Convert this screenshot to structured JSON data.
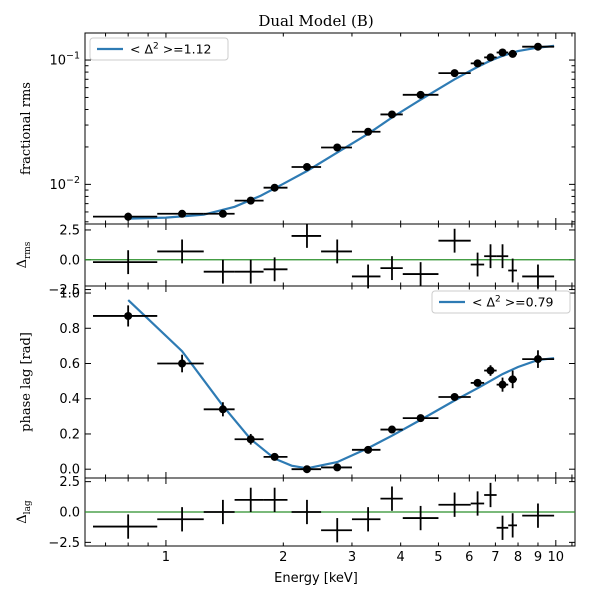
{
  "chart_data": {
    "type": "scatter",
    "title": "Dual Model (B)",
    "xlabel": "Energy [keV]",
    "x_scale": "log",
    "xlim": [
      0.62,
      11.2
    ],
    "x_ticks": [
      {
        "v": 1,
        "label": "1"
      },
      {
        "v": 2,
        "label": "2"
      },
      {
        "v": 3,
        "label": "3"
      },
      {
        "v": 4,
        "label": "4"
      },
      {
        "v": 5,
        "label": "5"
      },
      {
        "v": 6,
        "label": "6"
      },
      {
        "v": 7,
        "label": "7"
      },
      {
        "v": 8,
        "label": "8"
      },
      {
        "v": 9,
        "label": "9"
      },
      {
        "v": 10,
        "label": "10"
      }
    ],
    "energy": [
      0.8,
      1.1,
      1.4,
      1.65,
      1.9,
      2.3,
      2.75,
      3.3,
      3.8,
      4.5,
      5.5,
      6.3,
      6.8,
      7.3,
      7.75,
      9.0
    ],
    "energy_lo": [
      0.65,
      0.95,
      1.25,
      1.5,
      1.78,
      2.1,
      2.5,
      3.0,
      3.55,
      4.05,
      5.0,
      6.05,
      6.55,
      7.05,
      7.55,
      8.2
    ],
    "energy_hi": [
      0.95,
      1.25,
      1.5,
      1.78,
      2.05,
      2.5,
      3.0,
      3.55,
      4.05,
      5.0,
      6.05,
      6.55,
      7.05,
      7.55,
      7.95,
      9.9
    ],
    "panels": [
      {
        "id": "rms",
        "ylabel": "fractional rms",
        "y_scale": "log",
        "ylim": [
          0.0048,
          0.165
        ],
        "y_ticks": [
          {
            "v": 0.01,
            "label_base": "10",
            "label_exp": "−2"
          },
          {
            "v": 0.1,
            "label_base": "10",
            "label_exp": "−1"
          }
        ],
        "y_minor_ticks": [
          0.005,
          0.006,
          0.007,
          0.008,
          0.009,
          0.02,
          0.03,
          0.04,
          0.05,
          0.06,
          0.07,
          0.08,
          0.09
        ],
        "legend": {
          "prefix": "< Δ",
          "sup": "2",
          "suffix": " >=1.12",
          "position": "top-left"
        },
        "values": [
          0.0055,
          0.0058,
          0.0058,
          0.0074,
          0.0094,
          0.0138,
          0.0198,
          0.0265,
          0.0365,
          0.0525,
          0.0785,
          0.094,
          0.105,
          0.115,
          0.112,
          0.128
        ],
        "y_err": [
          0.0004,
          0.0003,
          0.0003,
          0.0003,
          0.0004,
          0.0005,
          0.0006,
          0.0008,
          0.001,
          0.0015,
          0.003,
          0.004,
          0.005,
          0.006,
          0.006,
          0.007
        ],
        "model_x": [
          0.8,
          1.0,
          1.25,
          1.5,
          1.75,
          2.0,
          2.3,
          2.75,
          3.3,
          3.8,
          4.5,
          5.5,
          6.3,
          6.8,
          7.3,
          8.0,
          9.0,
          9.9
        ],
        "model_y": [
          0.0053,
          0.0054,
          0.0057,
          0.0066,
          0.0081,
          0.0101,
          0.0128,
          0.018,
          0.0255,
          0.0345,
          0.048,
          0.07,
          0.088,
          0.099,
          0.108,
          0.118,
          0.126,
          0.13
        ]
      },
      {
        "id": "rms_resid",
        "ylabel_base": "Δ",
        "ylabel_sub": "rms",
        "y_scale": "linear",
        "ylim": [
          -2.2,
          3.0
        ],
        "y_ticks": [
          {
            "v": 2.5,
            "label": "2.5"
          },
          {
            "v": 0.0,
            "label": "0.0"
          },
          {
            "v": -2.5,
            "label": "−2.5"
          }
        ],
        "values": [
          -0.2,
          0.7,
          -1.0,
          -1.0,
          -0.8,
          2.0,
          0.7,
          -1.4,
          -0.7,
          -1.2,
          1.6,
          -0.4,
          0.3,
          0.3,
          -0.9,
          -1.4
        ],
        "y_err": [
          1,
          1,
          1,
          1,
          1,
          1,
          1,
          1,
          1,
          1,
          1,
          1,
          1,
          1,
          1,
          1
        ]
      },
      {
        "id": "lag",
        "ylabel": "phase lag [rad]",
        "y_scale": "linear",
        "ylim": [
          -0.05,
          1.04
        ],
        "y_ticks": [
          {
            "v": 0.0,
            "label": "0.0"
          },
          {
            "v": 0.2,
            "label": "0.2"
          },
          {
            "v": 0.4,
            "label": "0.4"
          },
          {
            "v": 0.6,
            "label": "0.6"
          },
          {
            "v": 0.8,
            "label": "0.8"
          },
          {
            "v": 1.0,
            "label": "1.0"
          }
        ],
        "legend": {
          "prefix": "< Δ",
          "sup": "2",
          "suffix": " >=0.79",
          "position": "top-right"
        },
        "values": [
          0.87,
          0.6,
          0.34,
          0.17,
          0.07,
          0.0,
          0.01,
          0.11,
          0.225,
          0.29,
          0.41,
          0.49,
          0.56,
          0.48,
          0.51,
          0.625
        ],
        "y_err": [
          0.06,
          0.05,
          0.04,
          0.03,
          0.02,
          0.015,
          0.015,
          0.02,
          0.02,
          0.02,
          0.02,
          0.02,
          0.03,
          0.04,
          0.05,
          0.05
        ],
        "model_x": [
          0.8,
          1.1,
          1.4,
          1.65,
          1.9,
          2.1,
          2.3,
          2.75,
          3.3,
          3.8,
          4.5,
          5.5,
          6.3,
          7.3,
          8.0,
          9.0,
          9.9
        ],
        "model_y": [
          0.96,
          0.67,
          0.36,
          0.17,
          0.06,
          0.02,
          0.005,
          0.04,
          0.12,
          0.19,
          0.28,
          0.39,
          0.46,
          0.54,
          0.58,
          0.62,
          0.63
        ]
      },
      {
        "id": "lag_resid",
        "ylabel_base": "Δ",
        "ylabel_sub": "lag",
        "y_scale": "linear",
        "ylim": [
          -2.8,
          2.8
        ],
        "y_ticks": [
          {
            "v": 2.5,
            "label": "2.5"
          },
          {
            "v": 0.0,
            "label": "0.0"
          },
          {
            "v": -2.5,
            "label": "−2.5"
          }
        ],
        "values": [
          -1.2,
          -0.6,
          0.0,
          1.0,
          1.0,
          0.0,
          -1.5,
          -0.6,
          1.1,
          -0.5,
          0.6,
          0.7,
          1.4,
          -1.3,
          -1.1,
          -0.3
        ],
        "y_err": [
          1,
          1,
          1,
          1,
          1,
          1,
          1,
          1,
          1,
          1,
          1,
          1,
          1,
          1,
          1,
          1
        ]
      }
    ],
    "colors": {
      "model": "#2e7bb4",
      "zero_line": "#2a8f2a",
      "points": "#000000"
    }
  }
}
